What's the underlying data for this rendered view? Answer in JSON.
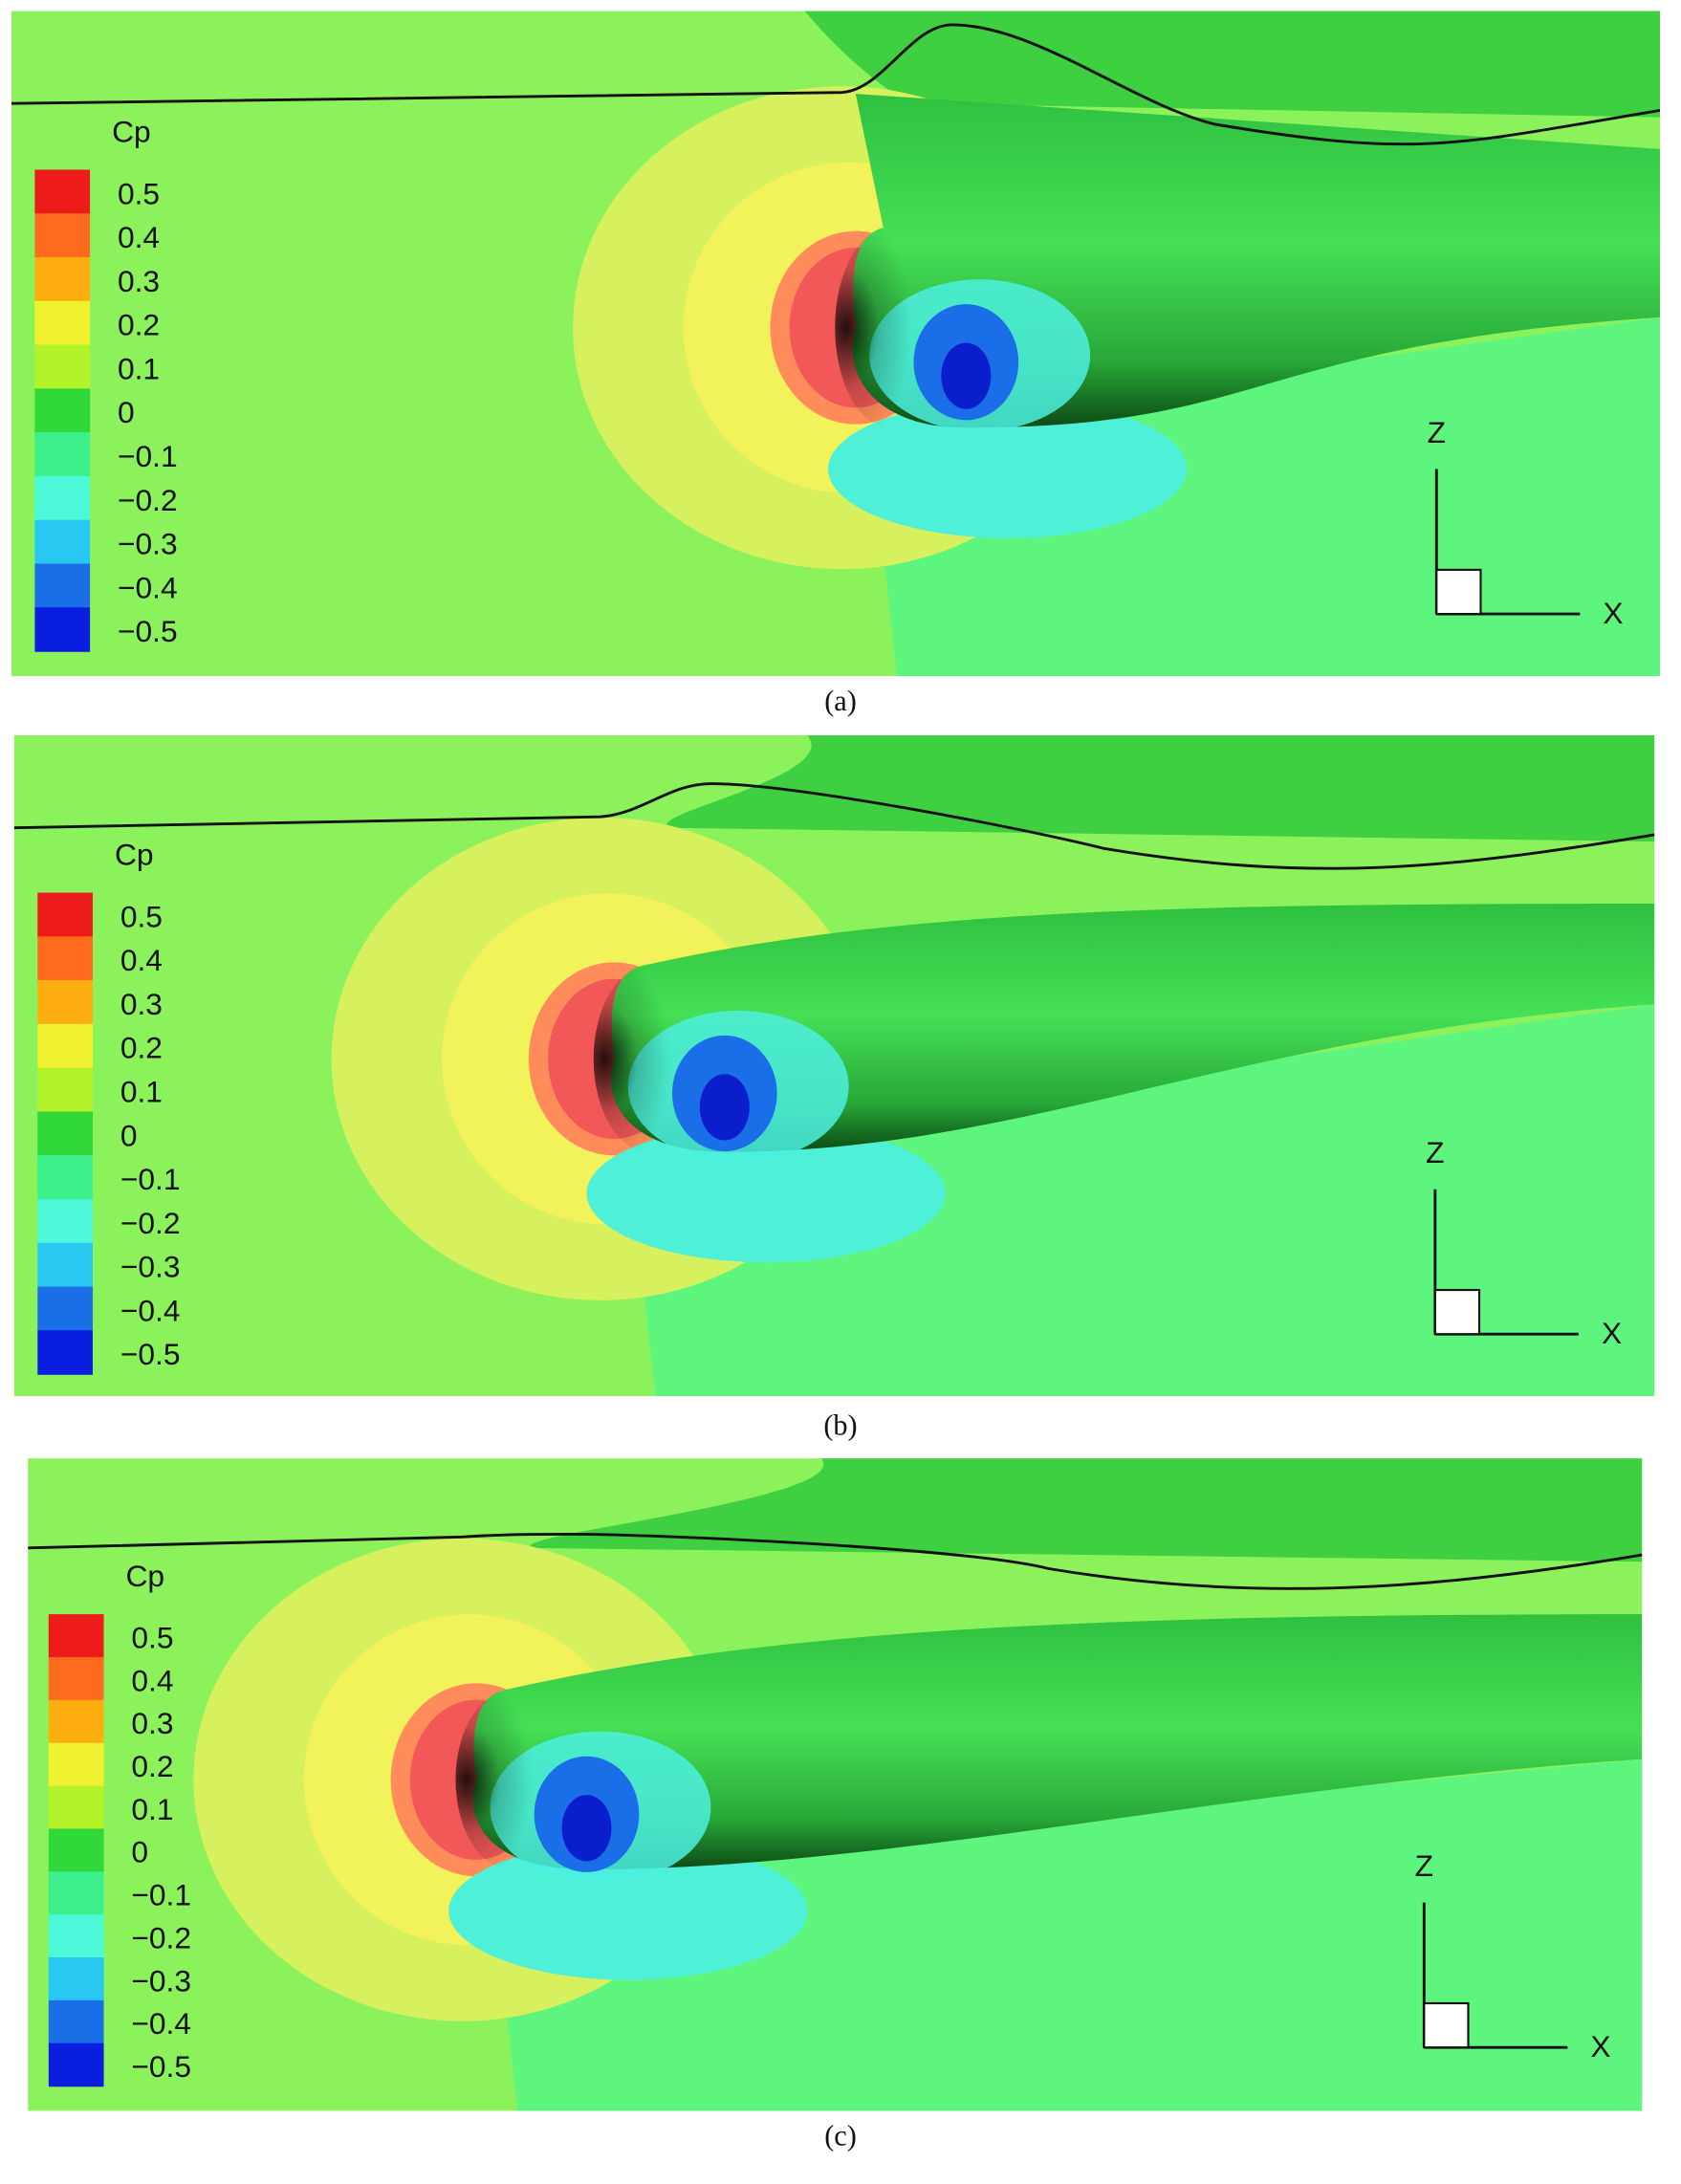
{
  "figure": {
    "legend_colors": [
      "#ee1b1b",
      "#ff6a1e",
      "#ffae10",
      "#f0f230",
      "#b4f22a",
      "#72ea2e",
      "#30d83a",
      "#3ef08c",
      "#4cf8d8",
      "#28c8f2",
      "#1a6ee8",
      "#0a1ee0"
    ],
    "panels": [
      {
        "caption": "(a)",
        "legend_title": "Cp",
        "legend_labels": [
          "0.5",
          "0.4",
          "0.3",
          "0.2",
          "0.1",
          "0",
          "−0.1",
          "−0.2",
          "−0.3",
          "−0.4",
          "−0.5"
        ],
        "axis_z": "Z",
        "axis_x": "X"
      },
      {
        "caption": "(b)",
        "legend_title": "Cp",
        "legend_labels": [
          "0.5",
          "0.4",
          "0.3",
          "0.2",
          "0.1",
          "0",
          "−0.1",
          "−0.2",
          "−0.3",
          "−0.4",
          "−0.5"
        ],
        "axis_z": "Z",
        "axis_x": "X"
      },
      {
        "caption": "(c)",
        "legend_title": "Cp",
        "legend_labels": [
          "0.5",
          "0.4",
          "0.3",
          "0.2",
          "0.1",
          "0",
          "−0.1",
          "−0.2",
          "−0.3",
          "−0.4",
          "−0.5"
        ],
        "axis_z": "Z",
        "axis_x": "X"
      }
    ]
  }
}
